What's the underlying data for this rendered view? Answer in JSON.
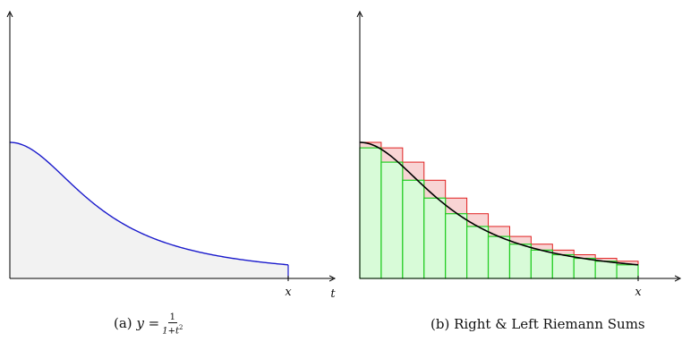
{
  "chart_data": [
    {
      "type": "area",
      "function": "y = 1/(1+t^2)",
      "x": [
        0,
        0.25,
        0.5,
        0.75,
        1,
        1.25,
        1.5,
        1.75,
        2,
        2.25,
        2.5,
        2.75,
        3
      ],
      "y": [
        1,
        0.941,
        0.8,
        0.64,
        0.5,
        0.39,
        0.308,
        0.246,
        0.2,
        0.165,
        0.138,
        0.117,
        0.1
      ],
      "xlim": [
        0,
        3
      ],
      "ylim": [
        0,
        1
      ],
      "xlabel": "t",
      "x_tick_labels": [
        "x"
      ],
      "caption": {
        "prefix": "(a)",
        "lhs": "y =",
        "numerator": "1",
        "denominator_base": "1+t",
        "denominator_exp": "2"
      },
      "colors": {
        "curve": "#1a1acc",
        "fill": "#f2f2f2",
        "axis": "#000000"
      }
    },
    {
      "type": "bar",
      "function": "y = 1/(1+t^2)",
      "n_intervals": 13,
      "interval": [
        0,
        3
      ],
      "series": [
        {
          "values": [
            1.0,
            0.9594,
            0.8546,
            0.7216,
            0.5904,
            0.4756,
            0.382,
            0.3086,
            0.2518,
            0.2081,
            0.1742,
            0.1476,
            0.1265
          ]
        },
        {
          "values": [
            0.9594,
            0.8546,
            0.7216,
            0.5904,
            0.4756,
            0.382,
            0.3086,
            0.2518,
            0.2081,
            0.1742,
            0.1476,
            0.1265,
            0.1
          ]
        }
      ],
      "curve_x": [
        0,
        0.25,
        0.5,
        0.75,
        1,
        1.25,
        1.5,
        1.75,
        2,
        2.25,
        2.5,
        2.75,
        3
      ],
      "curve_y": [
        1,
        0.941,
        0.8,
        0.64,
        0.5,
        0.39,
        0.308,
        0.246,
        0.2,
        0.165,
        0.138,
        0.117,
        0.1
      ],
      "xlim": [
        0,
        3
      ],
      "ylim": [
        0,
        1
      ],
      "x_tick_labels": [
        "x"
      ],
      "caption": "(b) Right & Left Riemann Sums",
      "colors": {
        "upper_stroke": "#e02020",
        "upper_fill": "#f8d4d4",
        "lower_stroke": "#22cc22",
        "lower_fill": "#d8fbd8",
        "curve": "#000000"
      }
    }
  ]
}
